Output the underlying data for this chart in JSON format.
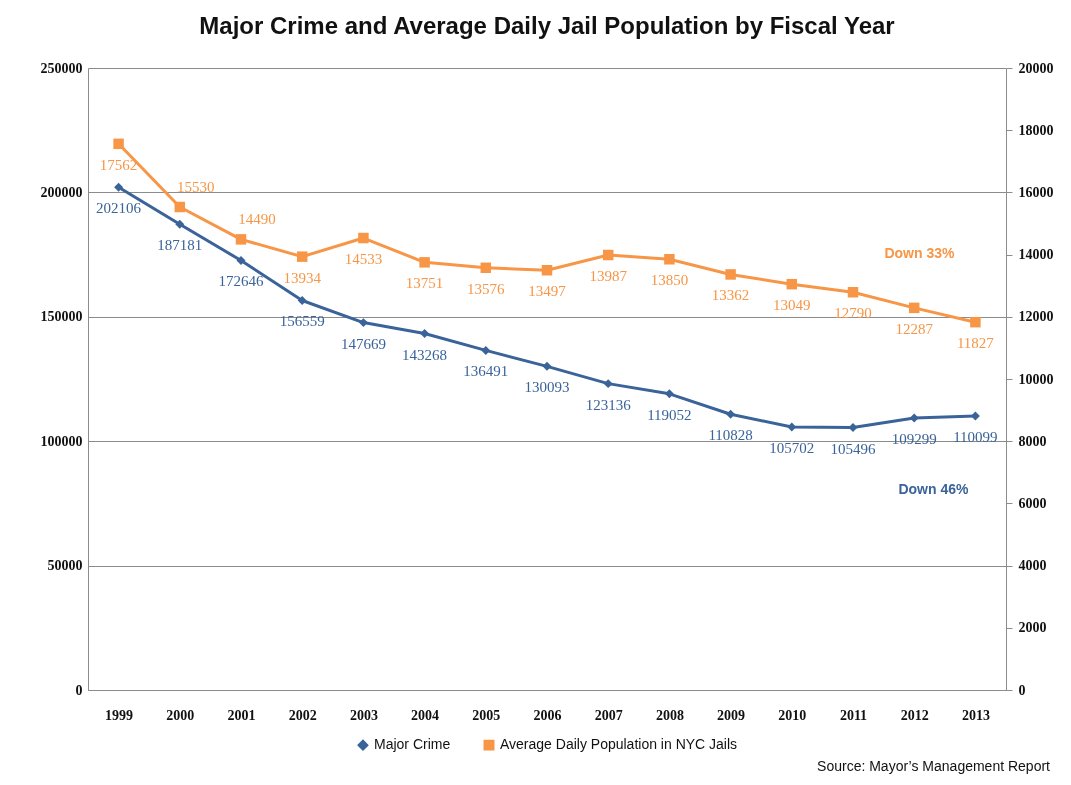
{
  "chart_data": {
    "type": "line",
    "title": "Major Crime and Average Daily Jail Population by Fiscal Year",
    "categories": [
      "1999",
      "2000",
      "2001",
      "2002",
      "2003",
      "2004",
      "2005",
      "2006",
      "2007",
      "2008",
      "2009",
      "2010",
      "2011",
      "2012",
      "2013"
    ],
    "series": [
      {
        "name": "Major Crime",
        "color": "#3a6399",
        "marker": "diamond",
        "values": [
          202106,
          187181,
          172646,
          156559,
          147669,
          143268,
          136491,
          130093,
          123136,
          119052,
          110828,
          105702,
          105496,
          109299,
          110099
        ]
      },
      {
        "name": "Average Daily Population in NYC Jails",
        "color": "#f79646",
        "marker": "square",
        "axis": "y2",
        "values": [
          17562,
          15530,
          14490,
          13934,
          14533,
          13751,
          13576,
          13497,
          13987,
          13850,
          13362,
          13049,
          12790,
          12287,
          11827
        ]
      }
    ],
    "ylim": [
      0,
      250000
    ],
    "yticks": [
      0,
      50000,
      100000,
      150000,
      200000,
      250000
    ],
    "y2lim": [
      0,
      20000
    ],
    "y2ticks": [
      0,
      2000,
      4000,
      6000,
      8000,
      10000,
      12000,
      14000,
      16000,
      18000,
      20000
    ],
    "grid": "y",
    "legend": "bottom",
    "line_style": "solid",
    "data_labels": true,
    "annotations": [
      "Down 46%",
      "Down 33%",
      "Source: Mayor’s Management Report"
    ]
  }
}
